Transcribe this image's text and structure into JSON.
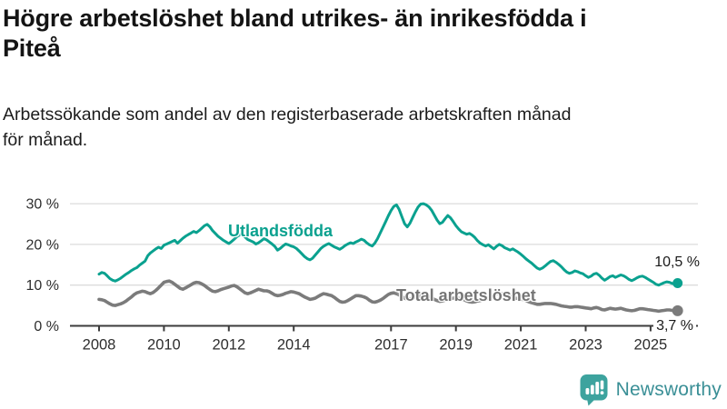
{
  "header": {
    "title_lines": [
      "Högre arbetslöshet bland utrikes- än inrikesfödda i",
      "Piteå"
    ],
    "subtitle_lines": [
      "Arbetssökande som andel av den registerbaserade arbetskraften månad",
      "för månad."
    ]
  },
  "chart_data": {
    "type": "line",
    "title": "Högre arbetslöshet bland utrikes- än inrikesfödda i Piteå",
    "subtitle": "Arbetssökande som andel av den registerbaserade arbetskraften månad för månad.",
    "x_unit": "month",
    "x_start": "2008-01",
    "x_end": "2025-11",
    "x_ticks": [
      2008,
      2010,
      2012,
      2014,
      2017,
      2019,
      2021,
      2023,
      2025
    ],
    "x_tick_labels": [
      "2008",
      "2010",
      "2012",
      "2014",
      "2017",
      "2019",
      "2021",
      "2023",
      "2025"
    ],
    "y_ticks": [
      0,
      10,
      20,
      30
    ],
    "y_tick_labels": [
      "0 %",
      "10 %",
      "20 %",
      "30 %"
    ],
    "ylim": [
      0,
      32
    ],
    "grid": "horizontal",
    "legend_position": "inline-labels",
    "series": [
      {
        "name": "Utlandsfödda",
        "color": "#0aa18f",
        "end_label": "10,5 %",
        "last_value": 10.5,
        "values": [
          12.7,
          13.1,
          12.9,
          12.3,
          11.6,
          11.2,
          11.0,
          11.3,
          11.7,
          12.2,
          12.7,
          13.1,
          13.6,
          14.0,
          14.3,
          14.9,
          15.4,
          15.9,
          17.2,
          17.9,
          18.4,
          18.9,
          19.3,
          19.0,
          19.8,
          20.1,
          20.4,
          20.7,
          21.0,
          20.3,
          20.9,
          21.5,
          22.0,
          22.4,
          22.8,
          23.2,
          22.9,
          23.4,
          24.0,
          24.6,
          24.9,
          24.3,
          23.4,
          22.7,
          22.0,
          21.5,
          21.0,
          20.6,
          20.2,
          20.7,
          21.3,
          21.9,
          22.3,
          22.6,
          21.8,
          21.2,
          20.9,
          20.6,
          20.1,
          20.4,
          20.9,
          21.4,
          21.1,
          20.6,
          20.1,
          19.5,
          18.6,
          19.0,
          19.6,
          20.1,
          19.9,
          19.6,
          19.4,
          19.0,
          18.4,
          17.7,
          17.0,
          16.5,
          16.2,
          16.6,
          17.4,
          18.2,
          19.0,
          19.5,
          19.9,
          20.2,
          19.8,
          19.4,
          19.1,
          18.8,
          19.2,
          19.7,
          20.1,
          20.4,
          20.2,
          20.6,
          20.9,
          21.3,
          21.0,
          20.4,
          19.9,
          19.6,
          20.3,
          21.4,
          22.8,
          24.2,
          25.6,
          27.0,
          28.3,
          29.3,
          29.7,
          28.6,
          26.8,
          25.1,
          24.3,
          25.2,
          26.6,
          28.0,
          29.2,
          29.9,
          30.0,
          29.7,
          29.2,
          28.4,
          27.2,
          26.0,
          25.1,
          25.4,
          26.3,
          27.1,
          26.5,
          25.6,
          24.6,
          23.8,
          23.1,
          22.8,
          22.5,
          22.7,
          22.3,
          21.7,
          20.9,
          20.3,
          19.9,
          19.6,
          19.9,
          19.4,
          18.9,
          19.5,
          20.0,
          19.7,
          19.2,
          18.9,
          18.6,
          18.9,
          18.5,
          18.1,
          17.6,
          17.0,
          16.4,
          15.9,
          15.4,
          14.8,
          14.2,
          13.9,
          14.2,
          14.7,
          15.3,
          15.8,
          16.0,
          15.6,
          15.1,
          14.5,
          13.8,
          13.2,
          12.9,
          13.1,
          13.5,
          13.3,
          13.0,
          12.8,
          12.3,
          11.9,
          12.2,
          12.7,
          12.9,
          12.4,
          11.7,
          11.2,
          11.6,
          12.1,
          12.3,
          11.9,
          12.2,
          12.5,
          12.3,
          11.9,
          11.4,
          11.1,
          11.4,
          11.8,
          12.1,
          12.2,
          11.9,
          11.5,
          11.1,
          10.7,
          10.2,
          10.0,
          10.3,
          10.6,
          10.8,
          10.7,
          10.4,
          10.3,
          10.5
        ]
      },
      {
        "name": "Total arbetslöshet",
        "color": "#7b7b7b",
        "end_label": "3,7 %",
        "last_value": 3.7,
        "values": [
          6.5,
          6.4,
          6.2,
          5.8,
          5.4,
          5.1,
          5.0,
          5.2,
          5.4,
          5.7,
          6.1,
          6.6,
          7.1,
          7.7,
          8.1,
          8.3,
          8.5,
          8.4,
          8.1,
          7.9,
          8.2,
          8.7,
          9.3,
          10.0,
          10.7,
          10.9,
          11.0,
          10.7,
          10.2,
          9.7,
          9.2,
          9.0,
          9.3,
          9.7,
          10.1,
          10.5,
          10.7,
          10.6,
          10.3,
          9.9,
          9.4,
          8.9,
          8.5,
          8.4,
          8.6,
          8.9,
          9.1,
          9.3,
          9.5,
          9.8,
          9.9,
          9.6,
          9.1,
          8.6,
          8.1,
          7.9,
          8.1,
          8.4,
          8.7,
          9.0,
          8.8,
          8.6,
          8.6,
          8.4,
          8.0,
          7.6,
          7.4,
          7.5,
          7.7,
          8.0,
          8.2,
          8.4,
          8.3,
          8.1,
          7.9,
          7.5,
          7.1,
          6.8,
          6.5,
          6.6,
          6.8,
          7.2,
          7.6,
          7.9,
          7.8,
          7.6,
          7.4,
          7.0,
          6.5,
          6.0,
          5.8,
          5.9,
          6.2,
          6.6,
          7.0,
          7.4,
          7.4,
          7.3,
          7.1,
          6.8,
          6.3,
          5.9,
          5.8,
          6.0,
          6.3,
          6.7,
          7.2,
          7.7,
          8.0,
          8.1,
          7.9,
          7.6,
          7.2,
          6.8,
          6.5,
          6.6,
          6.8,
          7.0,
          7.2,
          7.4,
          7.5,
          7.4,
          7.2,
          6.9,
          6.5,
          6.2,
          6.0,
          6.1,
          6.3,
          6.5,
          6.7,
          6.8,
          6.9,
          6.8,
          6.6,
          6.4,
          6.1,
          5.9,
          5.8,
          5.9,
          6.1,
          6.2,
          6.4,
          6.6,
          6.8,
          7.0,
          7.5,
          7.9,
          8.0,
          7.9,
          7.7,
          7.5,
          7.2,
          7.0,
          6.8,
          6.7,
          6.6,
          6.4,
          6.2,
          5.9,
          5.7,
          5.5,
          5.3,
          5.3,
          5.4,
          5.5,
          5.5,
          5.5,
          5.4,
          5.3,
          5.1,
          4.9,
          4.8,
          4.7,
          4.6,
          4.6,
          4.7,
          4.7,
          4.6,
          4.5,
          4.4,
          4.3,
          4.2,
          4.4,
          4.5,
          4.3,
          4.0,
          3.9,
          4.1,
          4.3,
          4.2,
          4.1,
          4.2,
          4.3,
          4.1,
          3.9,
          3.8,
          3.7,
          3.8,
          4.0,
          4.2,
          4.2,
          4.1,
          4.0,
          3.9,
          3.8,
          3.7,
          3.6,
          3.7,
          3.8,
          3.9,
          3.9,
          3.8,
          3.7,
          3.7
        ]
      }
    ],
    "colors": {
      "grid": "#dcdcdc",
      "axis": "#3c3c3c",
      "tick_text": "#2e2e2e"
    }
  },
  "branding": {
    "logo_text": "Newsworthy",
    "logo_icon": "bar-chart-speech-bubble-icon",
    "logo_teal": "#3da39e",
    "logo_text_color": "#3a8f96"
  }
}
